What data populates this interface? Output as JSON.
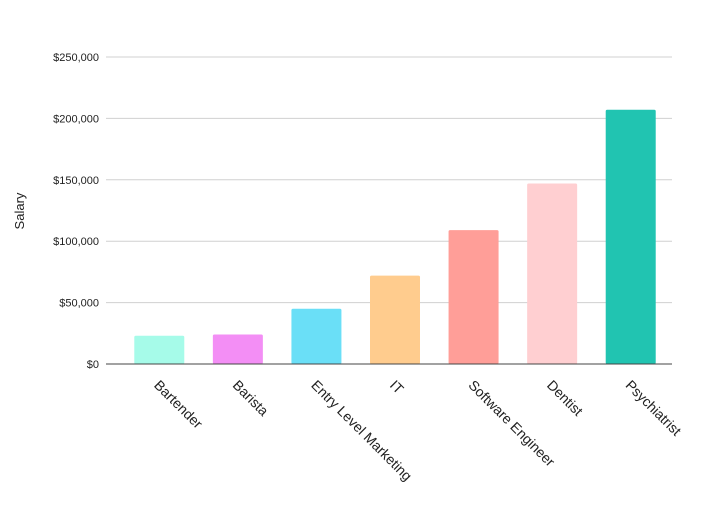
{
  "chart_data": {
    "type": "bar",
    "title": "",
    "xlabel": "",
    "ylabel": "Salary",
    "ylim": [
      0,
      250000
    ],
    "yticks": [
      0,
      50000,
      100000,
      150000,
      200000,
      250000
    ],
    "ytick_labels": [
      "$0",
      "$50,000",
      "$100,000",
      "$150,000",
      "$200,000",
      "$250,000"
    ],
    "categories": [
      "Bartender",
      "Barista",
      "Entry Level Marketing",
      "IT",
      "Software Engineer",
      "Dentist",
      "Psychiatrist"
    ],
    "values": [
      23000,
      24000,
      45000,
      72000,
      109000,
      147000,
      207000
    ],
    "colors": [
      "#a6fbe9",
      "#f38ef5",
      "#6adff7",
      "#ffcc8e",
      "#ff9e98",
      "#ffcfd1",
      "#21c4b1"
    ],
    "grid": true,
    "legend": "none"
  }
}
